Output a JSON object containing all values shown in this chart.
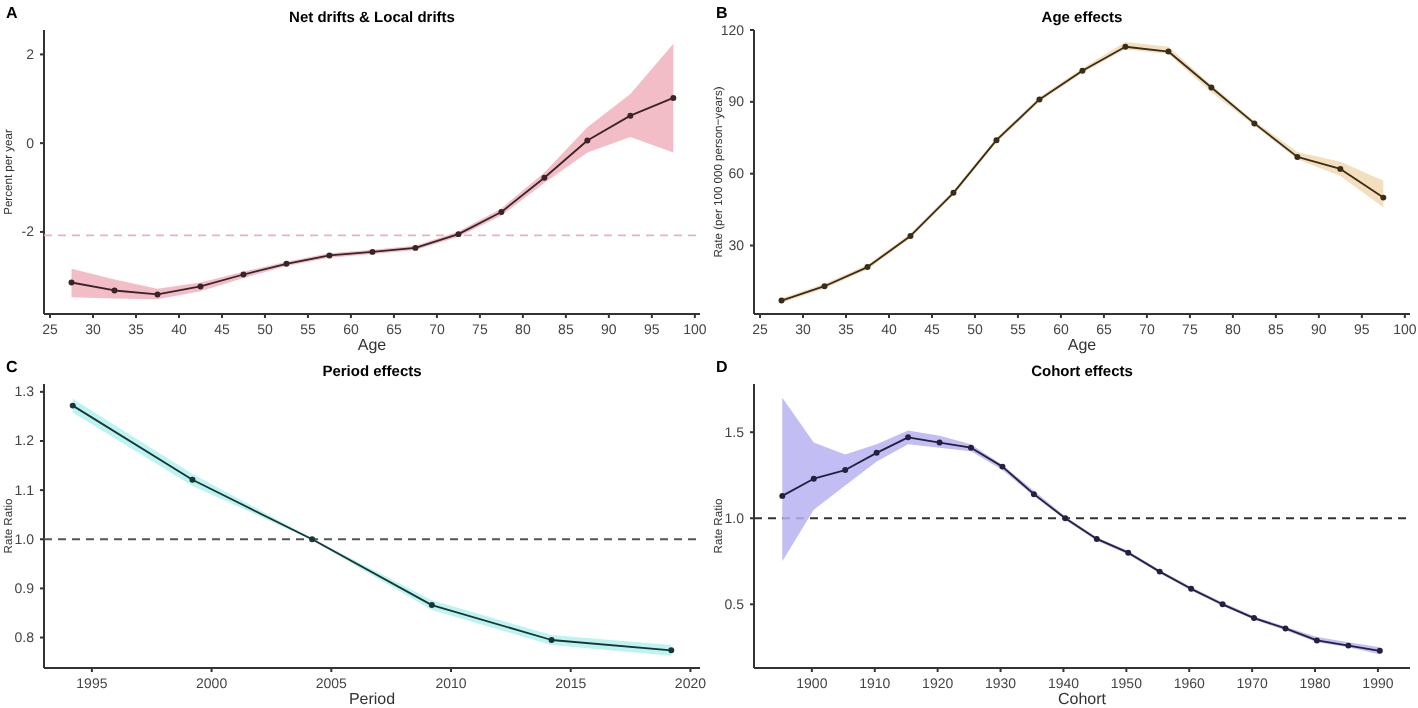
{
  "chart_data": [
    {
      "type": "line",
      "title": "Net drifts & Local drifts",
      "xlabel": "Age",
      "ylabel": "Percent per year",
      "annotations": [
        "A"
      ],
      "marker": "circle",
      "grid": false,
      "xlim": [
        24.3,
        100.6
      ],
      "xticks": [
        25,
        30,
        35,
        40,
        45,
        50,
        55,
        60,
        65,
        70,
        75,
        80,
        85,
        90,
        95,
        100
      ],
      "ylim": [
        -3.85,
        2.55
      ],
      "yticks": [
        -2,
        0,
        2
      ],
      "ref_lines": [
        {
          "axis": "y",
          "value": -2.08,
          "color": "#e8b4bc",
          "line_style": "dashed"
        }
      ],
      "series": [
        {
          "color": "#3a2428",
          "x": [
            27.5,
            32.5,
            37.5,
            42.5,
            47.5,
            52.5,
            57.5,
            62.5,
            67.5,
            72.5,
            77.5,
            82.5,
            87.5,
            92.5,
            97.5
          ],
          "values": [
            -3.14,
            -3.32,
            -3.41,
            -3.23,
            -2.96,
            -2.72,
            -2.53,
            -2.45,
            -2.36,
            -2.05,
            -1.55,
            -0.78,
            0.06,
            0.62,
            1.02
          ],
          "lower": [
            -3.47,
            -3.5,
            -3.52,
            -3.34,
            -3.04,
            -2.77,
            -2.58,
            -2.5,
            -2.41,
            -2.11,
            -1.63,
            -0.9,
            -0.21,
            0.14,
            -0.21
          ],
          "upper": [
            -2.83,
            -3.07,
            -3.28,
            -3.14,
            -2.9,
            -2.67,
            -2.48,
            -2.4,
            -2.31,
            -1.99,
            -1.47,
            -0.66,
            0.36,
            1.11,
            2.24
          ]
        }
      ]
    },
    {
      "type": "line",
      "title": "Age effects",
      "xlabel": "Age",
      "ylabel": "Rate (per 100 000 person−years)",
      "annotations": [
        "B"
      ],
      "marker": "circle",
      "grid": false,
      "xlim": [
        24.3,
        100.6
      ],
      "xticks": [
        25,
        30,
        35,
        40,
        45,
        50,
        55,
        60,
        65,
        70,
        75,
        80,
        85,
        90,
        95,
        100
      ],
      "ylim": [
        1.4,
        120
      ],
      "yticks": [
        30,
        60,
        90,
        120
      ],
      "series": [
        {
          "color": "#3a2c16",
          "x": [
            27.5,
            32.5,
            37.5,
            42.5,
            47.5,
            52.5,
            57.5,
            62.5,
            67.5,
            72.5,
            77.5,
            82.5,
            87.5,
            92.5,
            97.5
          ],
          "values": [
            7,
            13,
            21,
            34,
            52,
            74,
            91,
            103,
            113,
            111,
            96,
            81,
            67,
            62,
            50
          ],
          "lower": [
            6,
            12,
            20,
            33,
            51,
            73,
            90,
            102,
            112,
            110,
            94,
            80,
            66,
            59,
            46
          ],
          "upper": [
            8,
            14,
            22,
            35,
            53,
            75,
            92,
            104,
            115,
            113,
            97,
            82,
            69,
            65,
            57
          ]
        }
      ]
    },
    {
      "type": "line",
      "title": "Period effects",
      "xlabel": "Period",
      "ylabel": "Rate Ratio",
      "annotations": [
        "C"
      ],
      "marker": "circle",
      "grid": false,
      "xlim": [
        1993,
        2020.4
      ],
      "xticks": [
        1995,
        2000,
        2005,
        2010,
        2015,
        2020
      ],
      "ylim": [
        0.738,
        1.316
      ],
      "yticks": [
        0.8,
        0.9,
        {
          "value": 1,
          "label": "1.0"
        },
        1.1,
        1.2,
        1.3
      ],
      "ref_lines": [
        {
          "axis": "y",
          "value": 1,
          "color": "#555555",
          "line_style": "dashed"
        }
      ],
      "series": [
        {
          "color": "#173634",
          "x": [
            1994.2,
            1999.2,
            2004.2,
            2009.2,
            2014.2,
            2019.2
          ],
          "values": [
            1.272,
            1.121,
            1,
            0.866,
            0.795,
            0.774
          ],
          "lower": [
            1.258,
            1.109,
            0.998,
            0.856,
            0.785,
            0.763
          ],
          "upper": [
            1.286,
            1.133,
            1.002,
            0.876,
            0.805,
            0.785
          ]
        }
      ]
    },
    {
      "type": "line",
      "title": "Cohort effects",
      "xlabel": "Cohort",
      "ylabel": "Rate Ratio",
      "annotations": [
        "D"
      ],
      "marker": "circle",
      "grid": false,
      "xlim": [
        1890.8,
        1995.1
      ],
      "xticks": [
        1900,
        1910,
        1920,
        1930,
        1940,
        1950,
        1960,
        1970,
        1980,
        1990
      ],
      "ylim": [
        0.13,
        1.78
      ],
      "yticks": [
        0.5,
        {
          "value": 1,
          "label": "1.0"
        },
        1.5
      ],
      "ref_lines": [
        {
          "axis": "y",
          "value": 1,
          "color": "#333333",
          "line_style": "dashed"
        }
      ],
      "series": [
        {
          "color": "#232040",
          "x": [
            1895.3,
            1900.3,
            1905.3,
            1910.3,
            1915.3,
            1920.3,
            1925.3,
            1930.3,
            1935.3,
            1940.3,
            1945.3,
            1950.3,
            1955.3,
            1960.3,
            1965.3,
            1970.3,
            1975.3,
            1980.3,
            1985.3,
            1990.3
          ],
          "values": [
            1.13,
            1.23,
            1.28,
            1.38,
            1.47,
            1.44,
            1.41,
            1.3,
            1.14,
            1,
            0.88,
            0.8,
            0.69,
            0.59,
            0.5,
            0.42,
            0.36,
            0.29,
            0.26,
            0.23
          ],
          "lower": [
            0.75,
            1.05,
            1.19,
            1.33,
            1.43,
            1.41,
            1.39,
            1.28,
            1.13,
            0.99,
            0.87,
            0.79,
            0.68,
            0.58,
            0.49,
            0.41,
            0.35,
            0.28,
            0.25,
            0.21
          ],
          "upper": [
            1.7,
            1.44,
            1.37,
            1.43,
            1.51,
            1.48,
            1.43,
            1.31,
            1.16,
            1.01,
            0.89,
            0.81,
            0.7,
            0.6,
            0.51,
            0.43,
            0.37,
            0.31,
            0.28,
            0.25
          ]
        }
      ]
    }
  ]
}
